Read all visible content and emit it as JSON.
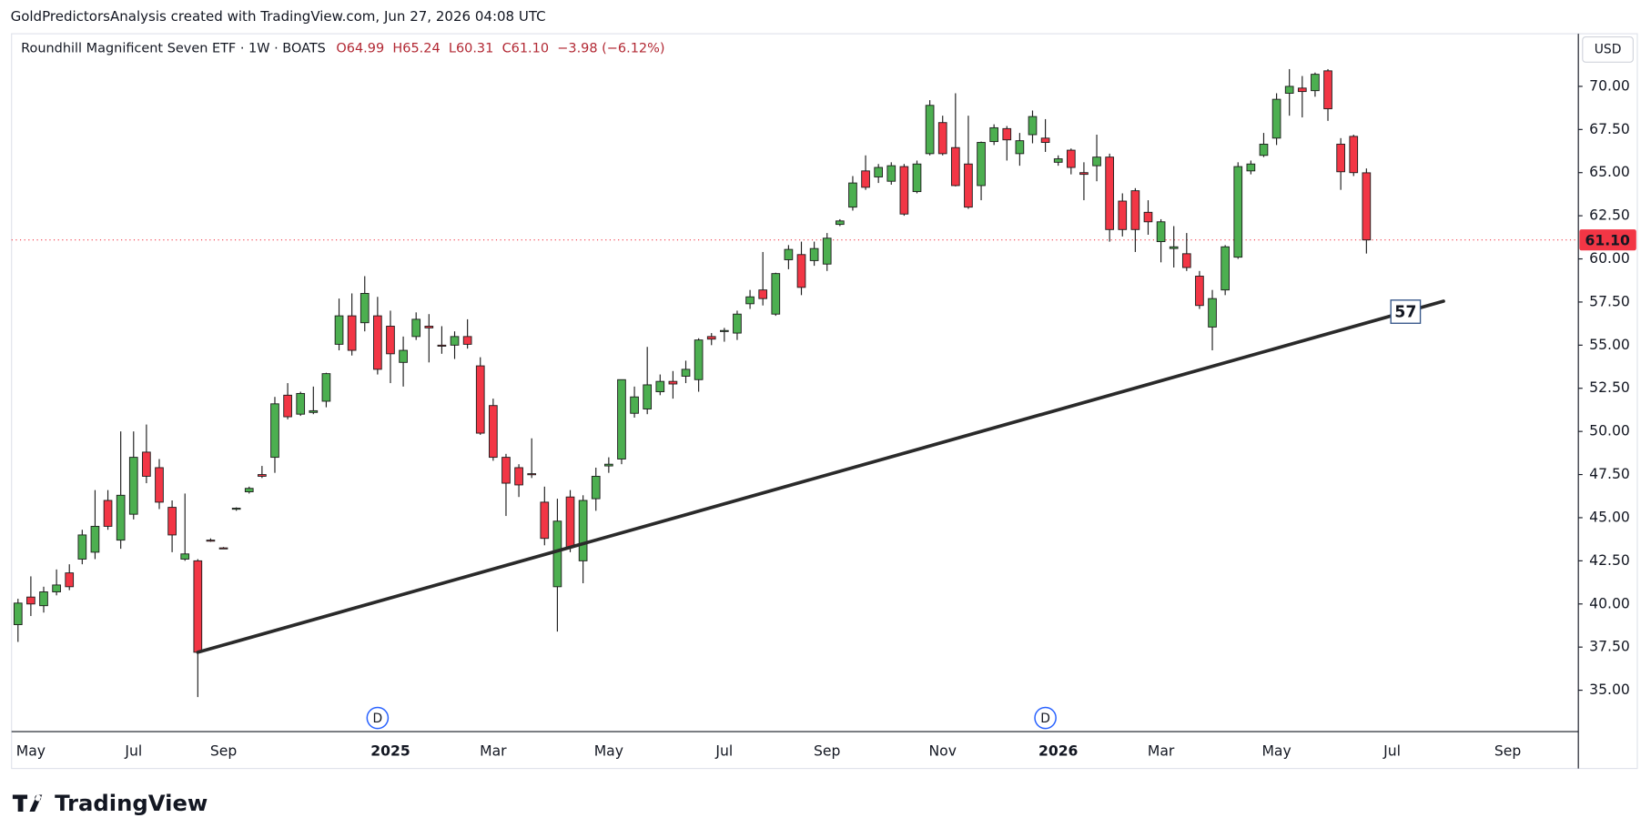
{
  "watermark": "GoldPredictorsAnalysis created with TradingView.com, Jun 27, 2026 04:08 UTC",
  "logo": "TradingView",
  "header": {
    "symbol": "Roundhill Magnificent Seven ETF · 1W · BOATS",
    "open": "O64.99",
    "high": "H65.24",
    "low": "L60.31",
    "close": "C61.10",
    "change": "−3.98 (−6.12%)"
  },
  "chart_data": {
    "type": "candlestick",
    "currency": "USD",
    "up_color": "#4caf50",
    "down_color": "#f23645",
    "border_color": "#1e1e1e",
    "categories": [
      null,
      "May",
      null,
      null,
      null,
      null,
      null,
      null,
      null,
      "Jul",
      null,
      null,
      null,
      null,
      null,
      null,
      "Sep",
      null,
      null,
      null,
      null,
      null,
      null,
      null,
      null,
      null,
      null,
      null,
      null,
      "2025",
      null,
      null,
      null,
      null,
      null,
      null,
      null,
      "Mar",
      null,
      null,
      null,
      null,
      null,
      null,
      null,
      null,
      "May",
      null,
      null,
      null,
      null,
      null,
      null,
      null,
      null,
      "Jul",
      null,
      null,
      null,
      null,
      null,
      null,
      null,
      "Sep",
      null,
      null,
      null,
      null,
      null,
      null,
      null,
      null,
      "Nov",
      null,
      null,
      null,
      null,
      null,
      null,
      null,
      null,
      "2026",
      null,
      null,
      null,
      null,
      null,
      null,
      null,
      "Mar",
      null,
      null,
      null,
      null,
      null,
      null,
      null,
      null,
      "May",
      null,
      null,
      null,
      null,
      null,
      null,
      null,
      null,
      "Jul",
      null,
      null,
      null,
      null,
      null,
      null,
      null,
      null,
      "Sep",
      null,
      null,
      null,
      null,
      null
    ],
    "ohlc": [
      [
        38.8,
        40.3,
        37.8,
        40.05
      ],
      [
        40.4,
        41.6,
        39.3,
        40.0
      ],
      [
        39.9,
        41.0,
        39.5,
        40.7
      ],
      [
        40.7,
        42.0,
        40.5,
        41.1
      ],
      [
        41.8,
        42.3,
        40.8,
        41.0
      ],
      [
        42.6,
        44.3,
        42.3,
        44.0
      ],
      [
        43.0,
        46.6,
        42.6,
        44.5
      ],
      [
        46.0,
        46.6,
        44.3,
        44.5
      ],
      [
        43.7,
        50.0,
        43.2,
        46.3
      ],
      [
        45.2,
        50.0,
        44.9,
        48.5
      ],
      [
        48.8,
        50.4,
        47.0,
        47.4
      ],
      [
        47.9,
        48.4,
        45.5,
        45.9
      ],
      [
        45.6,
        46.0,
        43.0,
        44.0
      ],
      [
        42.6,
        46.4,
        42.5,
        42.9
      ],
      [
        42.5,
        42.6,
        34.6,
        37.2
      ],
      [
        43.7,
        43.8,
        43.6,
        43.65
      ],
      [
        43.25,
        43.3,
        43.2,
        43.2
      ],
      [
        45.5,
        45.6,
        45.4,
        45.55
      ],
      [
        46.5,
        46.8,
        46.4,
        46.7
      ],
      [
        47.5,
        48.0,
        47.3,
        47.4
      ],
      [
        48.5,
        52.0,
        47.6,
        51.6
      ],
      [
        52.1,
        52.8,
        50.7,
        50.85
      ],
      [
        51.0,
        52.3,
        50.9,
        52.2
      ],
      [
        51.1,
        52.6,
        51.0,
        51.2
      ],
      [
        51.75,
        53.4,
        51.4,
        53.35
      ],
      [
        55.05,
        57.7,
        54.7,
        56.7
      ],
      [
        56.7,
        58.0,
        54.4,
        54.7
      ],
      [
        56.3,
        59.0,
        55.8,
        58.0
      ],
      [
        56.7,
        57.8,
        53.3,
        53.6
      ],
      [
        56.1,
        57.0,
        52.8,
        54.5
      ],
      [
        54.0,
        55.5,
        52.6,
        54.7
      ],
      [
        55.5,
        56.9,
        55.3,
        56.5
      ],
      [
        56.1,
        56.8,
        54.0,
        56.0
      ],
      [
        55.0,
        56.1,
        54.5,
        54.95
      ],
      [
        55.0,
        55.8,
        54.2,
        55.5
      ],
      [
        55.5,
        56.5,
        54.8,
        55.05
      ],
      [
        53.8,
        54.3,
        49.8,
        49.9
      ],
      [
        51.5,
        51.9,
        48.3,
        48.5
      ],
      [
        48.5,
        48.7,
        45.1,
        47.0
      ],
      [
        47.9,
        48.1,
        46.2,
        46.9
      ],
      [
        47.55,
        49.6,
        47.3,
        47.5
      ],
      [
        45.9,
        46.8,
        43.4,
        43.8
      ],
      [
        41.0,
        46.1,
        38.4,
        44.8
      ],
      [
        46.2,
        46.6,
        43.0,
        43.3
      ],
      [
        42.5,
        46.3,
        41.2,
        46.0
      ],
      [
        46.1,
        47.9,
        45.4,
        47.4
      ],
      [
        48.0,
        48.5,
        47.6,
        48.1
      ],
      [
        48.4,
        53.0,
        48.1,
        53.0
      ],
      [
        51.05,
        52.6,
        50.8,
        52.0
      ],
      [
        51.3,
        54.9,
        51.0,
        52.7
      ],
      [
        52.3,
        53.3,
        52.1,
        52.9
      ],
      [
        52.9,
        53.5,
        51.9,
        52.75
      ],
      [
        53.2,
        54.1,
        52.8,
        53.6
      ],
      [
        53.0,
        55.4,
        52.3,
        55.3
      ],
      [
        55.5,
        55.7,
        55.0,
        55.35
      ],
      [
        55.8,
        56.0,
        55.2,
        55.85
      ],
      [
        55.7,
        57.0,
        55.3,
        56.8
      ],
      [
        57.4,
        58.2,
        57.1,
        57.8
      ],
      [
        58.2,
        60.4,
        57.3,
        57.7
      ],
      [
        56.8,
        59.2,
        56.7,
        59.15
      ],
      [
        59.95,
        60.8,
        59.4,
        60.55
      ],
      [
        60.25,
        61.0,
        57.9,
        58.35
      ],
      [
        59.9,
        61.0,
        59.6,
        60.6
      ],
      [
        59.7,
        61.5,
        59.3,
        61.2
      ],
      [
        62.0,
        62.3,
        61.9,
        62.2
      ],
      [
        63.0,
        64.8,
        62.8,
        64.4
      ],
      [
        65.1,
        66.0,
        64.0,
        64.15
      ],
      [
        64.75,
        65.5,
        64.4,
        65.3
      ],
      [
        64.5,
        65.6,
        64.3,
        65.4
      ],
      [
        65.35,
        65.5,
        62.5,
        62.6
      ],
      [
        63.9,
        65.7,
        63.8,
        65.5
      ],
      [
        66.1,
        69.2,
        66.0,
        68.9
      ],
      [
        67.9,
        68.3,
        66.0,
        66.1
      ],
      [
        66.45,
        69.6,
        64.2,
        64.25
      ],
      [
        65.5,
        68.3,
        62.9,
        63.0
      ],
      [
        64.25,
        66.8,
        63.4,
        66.75
      ],
      [
        66.8,
        67.8,
        66.6,
        67.6
      ],
      [
        67.55,
        67.7,
        65.7,
        66.9
      ],
      [
        66.1,
        67.3,
        65.4,
        66.85
      ],
      [
        67.2,
        68.6,
        66.7,
        68.25
      ],
      [
        67.0,
        68.1,
        66.2,
        66.75
      ],
      [
        65.6,
        66.0,
        65.4,
        65.8
      ],
      [
        66.3,
        66.4,
        64.9,
        65.3
      ],
      [
        65.0,
        65.6,
        63.4,
        64.9
      ],
      [
        65.4,
        67.2,
        64.5,
        65.9
      ],
      [
        65.9,
        66.1,
        61.0,
        61.7
      ],
      [
        63.35,
        63.8,
        61.3,
        61.7
      ],
      [
        63.95,
        64.1,
        60.4,
        61.7
      ],
      [
        62.7,
        63.4,
        61.4,
        62.15
      ],
      [
        61.0,
        62.3,
        59.8,
        62.15
      ],
      [
        60.6,
        61.9,
        59.5,
        60.7
      ],
      [
        60.3,
        61.5,
        59.3,
        59.5
      ],
      [
        59.0,
        59.3,
        57.1,
        57.3
      ],
      [
        56.05,
        58.2,
        54.7,
        57.7
      ],
      [
        58.2,
        60.8,
        57.9,
        60.7
      ],
      [
        60.1,
        65.6,
        60.0,
        65.35
      ],
      [
        65.1,
        65.7,
        64.9,
        65.5
      ],
      [
        66.0,
        67.3,
        65.9,
        66.65
      ],
      [
        67.0,
        69.6,
        66.6,
        69.25
      ],
      [
        69.6,
        71.0,
        68.3,
        70.0
      ],
      [
        69.9,
        70.6,
        68.2,
        69.7
      ],
      [
        69.75,
        70.8,
        69.4,
        70.7
      ],
      [
        70.9,
        71.0,
        68.0,
        68.7
      ],
      [
        66.65,
        67.0,
        64.0,
        65.05
      ],
      [
        67.1,
        67.2,
        64.8,
        65.0
      ],
      [
        64.99,
        65.24,
        60.31,
        61.1
      ],
      null,
      null,
      null,
      null,
      null,
      null,
      null,
      null,
      null,
      null,
      null,
      null,
      null,
      null,
      null,
      null
    ],
    "ylim": [
      32.6,
      73.05
    ],
    "yticks": [
      {
        "value": 35,
        "label": "35.00"
      },
      {
        "value": 37.5,
        "label": "37.50"
      },
      {
        "value": 40,
        "label": "40.00"
      },
      {
        "value": 42.5,
        "label": "42.50"
      },
      {
        "value": 45,
        "label": "45.00"
      },
      {
        "value": 47.5,
        "label": "47.50"
      },
      {
        "value": 50,
        "label": "50.00"
      },
      {
        "value": 52.5,
        "label": "52.50"
      },
      {
        "value": 55,
        "label": "55.00"
      },
      {
        "value": 57.5,
        "label": "57.50"
      },
      {
        "value": 60,
        "label": "60.00"
      },
      {
        "value": 62.5,
        "label": "62.50"
      },
      {
        "value": 65,
        "label": "65.00"
      },
      {
        "value": 67.5,
        "label": "67.50"
      },
      {
        "value": 70,
        "label": "70.00"
      }
    ],
    "last_price": {
      "value": 61.1,
      "label": "61.10"
    },
    "trendline": {
      "start": [
        14,
        37.2
      ],
      "end": [
        111,
        57.55
      ],
      "label": "57"
    },
    "events": [
      {
        "at": 28,
        "label": "D"
      },
      {
        "at": 80,
        "label": "D"
      }
    ]
  }
}
